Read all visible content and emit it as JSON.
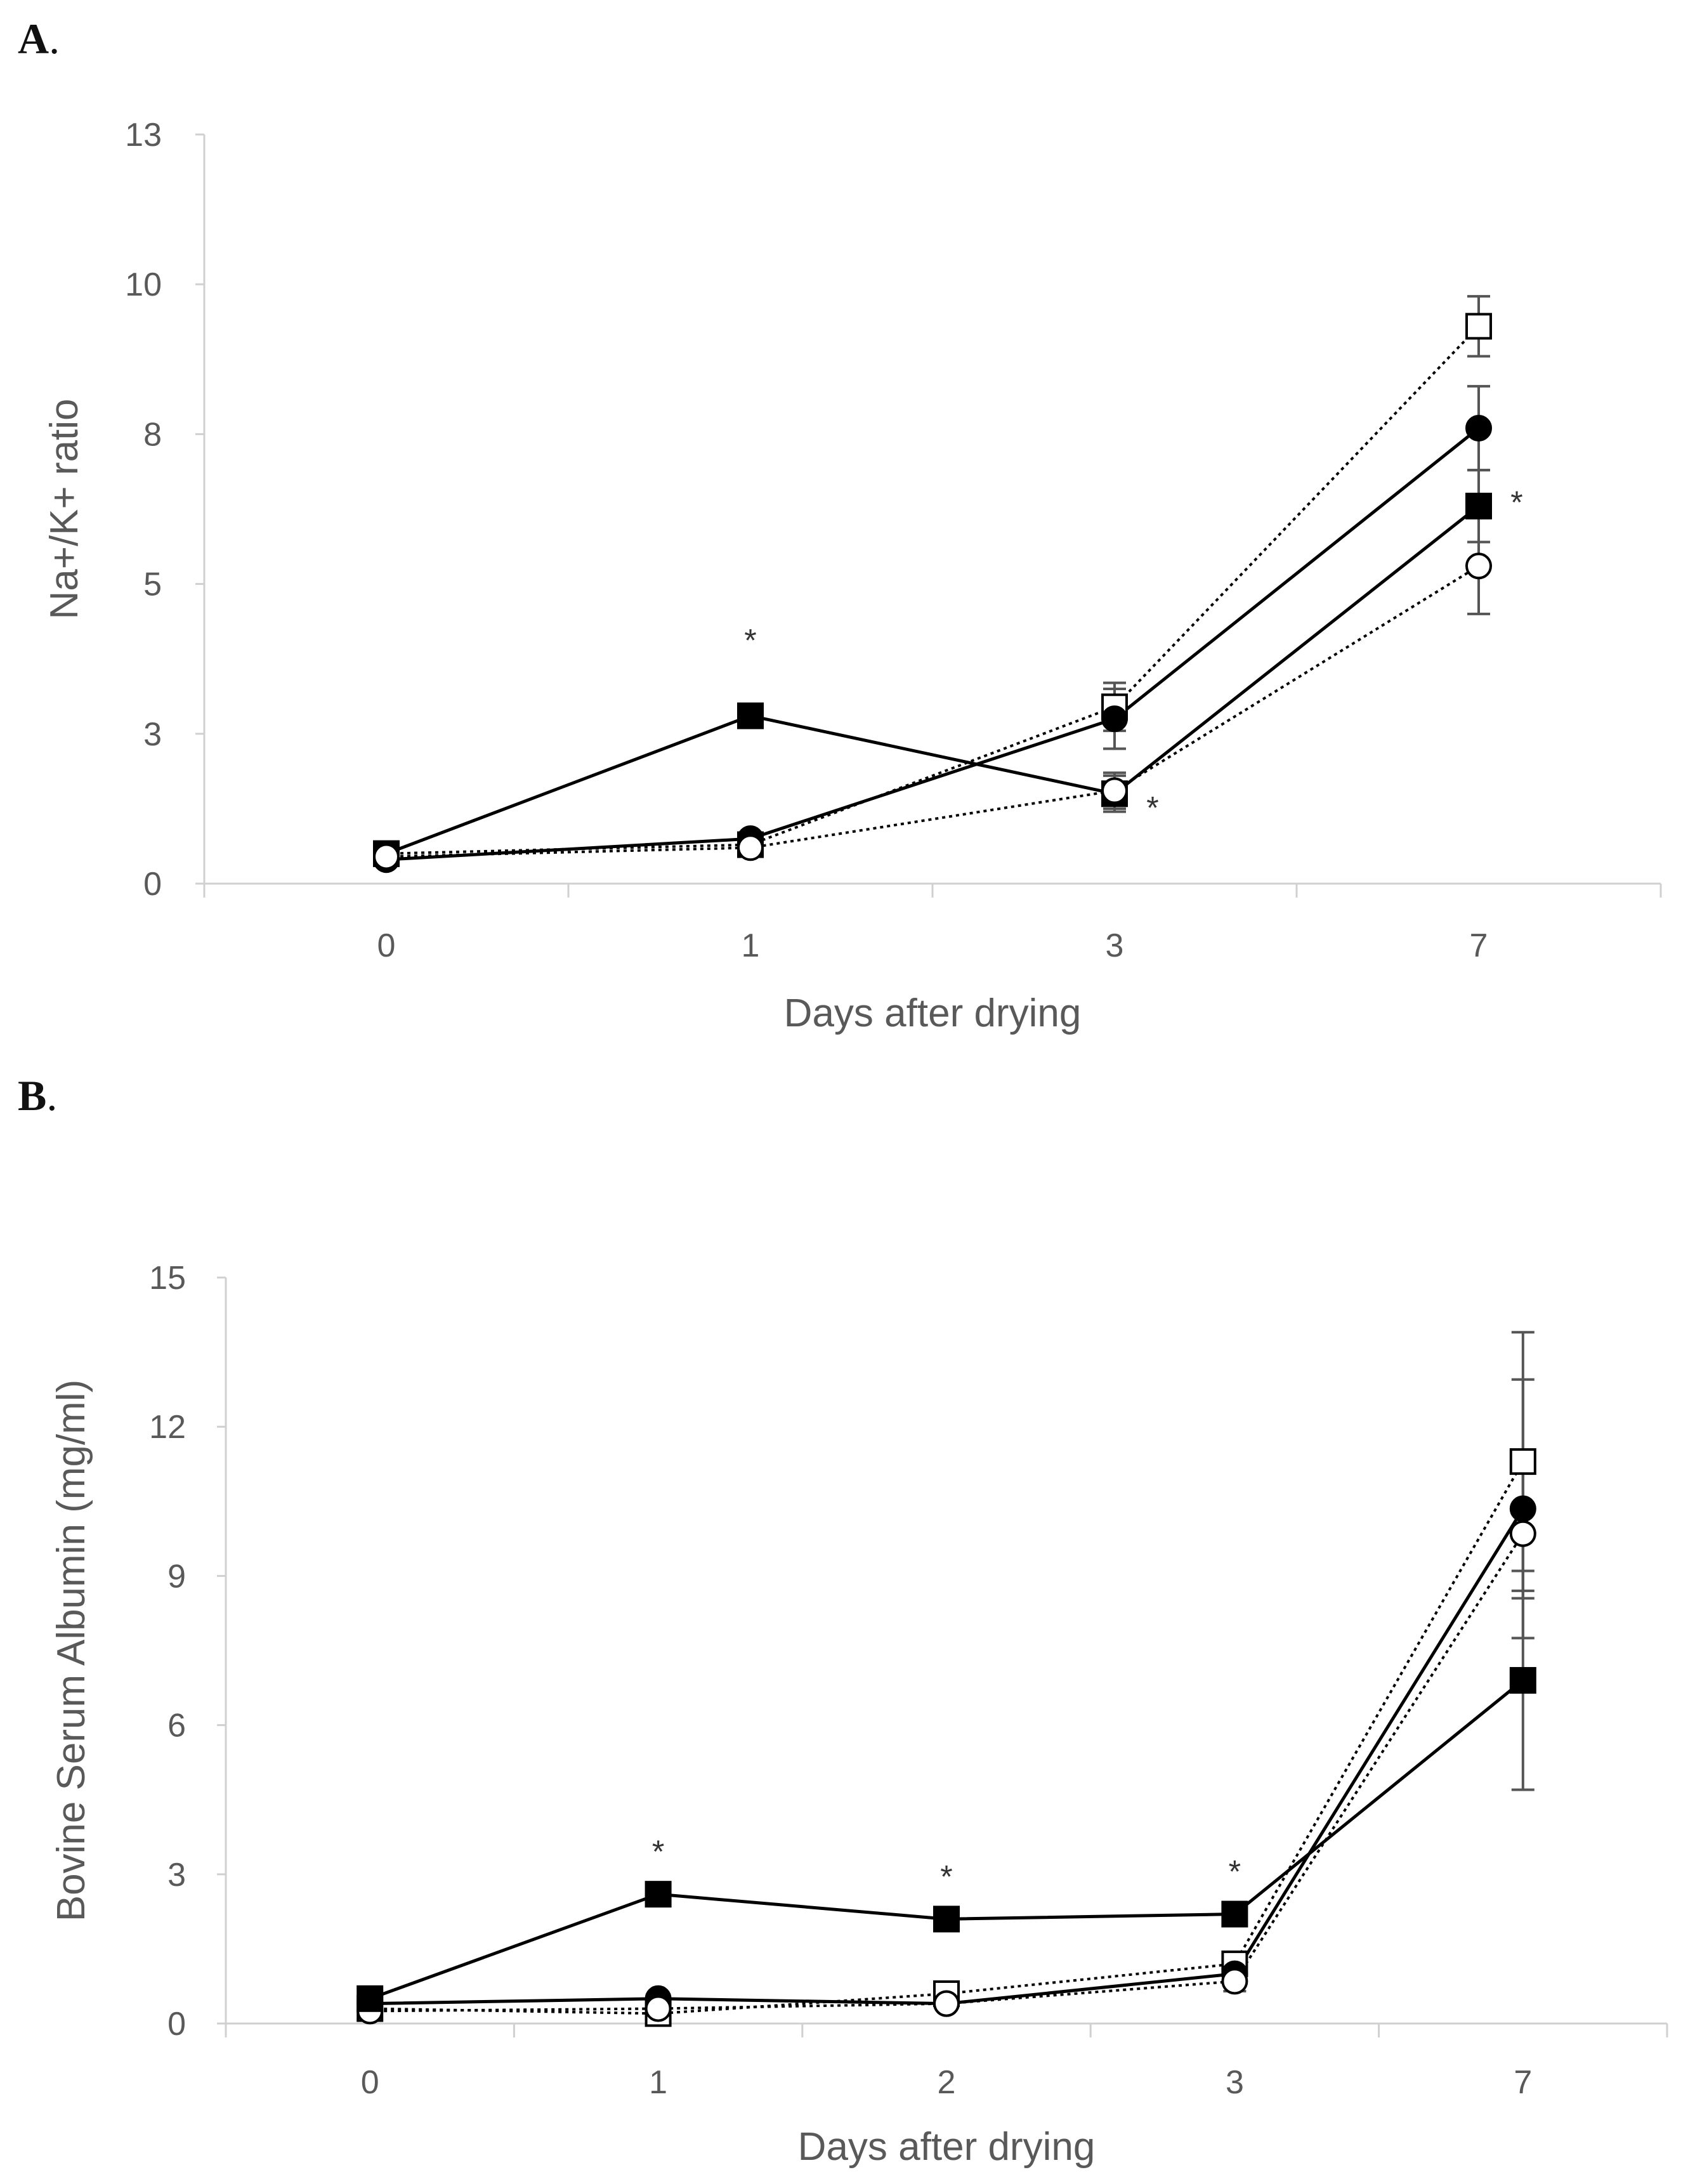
{
  "panels": {
    "a": {
      "letter": "A",
      "punct": "."
    },
    "b": {
      "letter": "B",
      "punct": "."
    }
  },
  "chart_data": [
    {
      "type": "line",
      "panel": "A",
      "title": "",
      "xlabel": "Days after drying",
      "ylabel": "Na+/K+ ratio",
      "categories": [
        "0",
        "1",
        "3",
        "7"
      ],
      "ylim": [
        0,
        12.5
      ],
      "yticks": [
        0,
        2.5,
        5,
        7.5,
        10,
        12.5
      ],
      "ytick_labels": [
        "0",
        "3",
        "5",
        "8",
        "10",
        "13"
      ],
      "grid": false,
      "series": [
        {
          "name": "open-square",
          "marker": "square",
          "filled": false,
          "line": "dotted",
          "values": [
            0.5,
            0.65,
            2.95,
            9.3
          ],
          "errors": [
            0.05,
            0.05,
            0.4,
            0.5
          ]
        },
        {
          "name": "filled-circle",
          "marker": "circle",
          "filled": true,
          "line": "solid",
          "values": [
            0.4,
            0.75,
            2.75,
            7.6
          ],
          "errors": [
            0.05,
            0.05,
            0.5,
            0.7
          ]
        },
        {
          "name": "filled-square",
          "marker": "square",
          "filled": true,
          "line": "solid",
          "values": [
            0.5,
            2.8,
            1.5,
            6.3
          ],
          "errors": [
            0.05,
            0.15,
            0.3,
            0.6
          ]
        },
        {
          "name": "open-circle",
          "marker": "circle",
          "filled": false,
          "line": "dotted",
          "values": [
            0.45,
            0.6,
            1.55,
            5.3
          ],
          "errors": [
            0.05,
            0.05,
            0.3,
            0.8
          ]
        }
      ],
      "annotations": [
        {
          "category": "1",
          "value": 3.35,
          "side": "above",
          "text": "*"
        },
        {
          "category": "3",
          "value": 1.4,
          "side": "right",
          "text": "*"
        },
        {
          "category": "7",
          "value": 6.5,
          "side": "right",
          "text": "*"
        }
      ]
    },
    {
      "type": "line",
      "panel": "B",
      "title": "",
      "xlabel": "Days after drying",
      "ylabel": "Bovine Serum Albumin (mg/ml)",
      "categories": [
        "0",
        "1",
        "2",
        "3",
        "7"
      ],
      "ylim": [
        0,
        15
      ],
      "yticks": [
        0,
        3,
        6,
        9,
        12,
        15
      ],
      "ytick_labels": [
        "0",
        "3",
        "6",
        "9",
        "12",
        "15"
      ],
      "grid": false,
      "series": [
        {
          "name": "open-square",
          "marker": "square",
          "filled": false,
          "line": "dotted",
          "values": [
            0.3,
            0.2,
            0.6,
            1.2,
            11.3
          ],
          "errors": [
            0.05,
            0.05,
            0.1,
            0.2,
            2.6
          ]
        },
        {
          "name": "filled-circle",
          "marker": "circle",
          "filled": true,
          "line": "solid",
          "values": [
            0.4,
            0.5,
            0.4,
            1.0,
            10.35
          ],
          "errors": [
            0.05,
            0.05,
            0.1,
            0.2,
            2.6
          ]
        },
        {
          "name": "open-circle",
          "marker": "circle",
          "filled": false,
          "line": "dotted",
          "values": [
            0.25,
            0.3,
            0.4,
            0.85,
            9.85
          ],
          "errors": [
            0.05,
            0.05,
            0.1,
            0.2,
            1.3
          ]
        },
        {
          "name": "filled-square",
          "marker": "square",
          "filled": true,
          "line": "solid",
          "values": [
            0.5,
            2.6,
            2.1,
            2.2,
            6.9
          ],
          "errors": [
            0.05,
            0.1,
            0.1,
            0.1,
            2.2
          ]
        }
      ],
      "annotations": [
        {
          "category": "1",
          "value": 2.6,
          "side": "above",
          "text": "*"
        },
        {
          "category": "2",
          "value": 2.1,
          "side": "above",
          "text": "*"
        },
        {
          "category": "3",
          "value": 2.2,
          "side": "above",
          "text": "*"
        }
      ]
    }
  ]
}
